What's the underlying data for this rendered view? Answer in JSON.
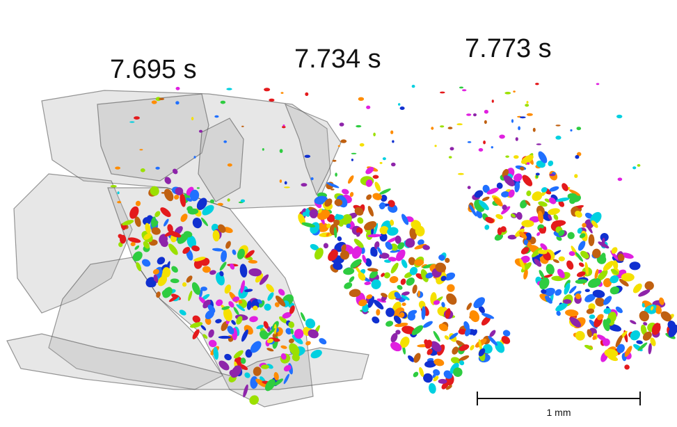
{
  "labels": [
    "7.695 s",
    "7.734 s",
    "7.773 s"
  ],
  "scale_bar": {
    "label": "1 mm"
  }
}
